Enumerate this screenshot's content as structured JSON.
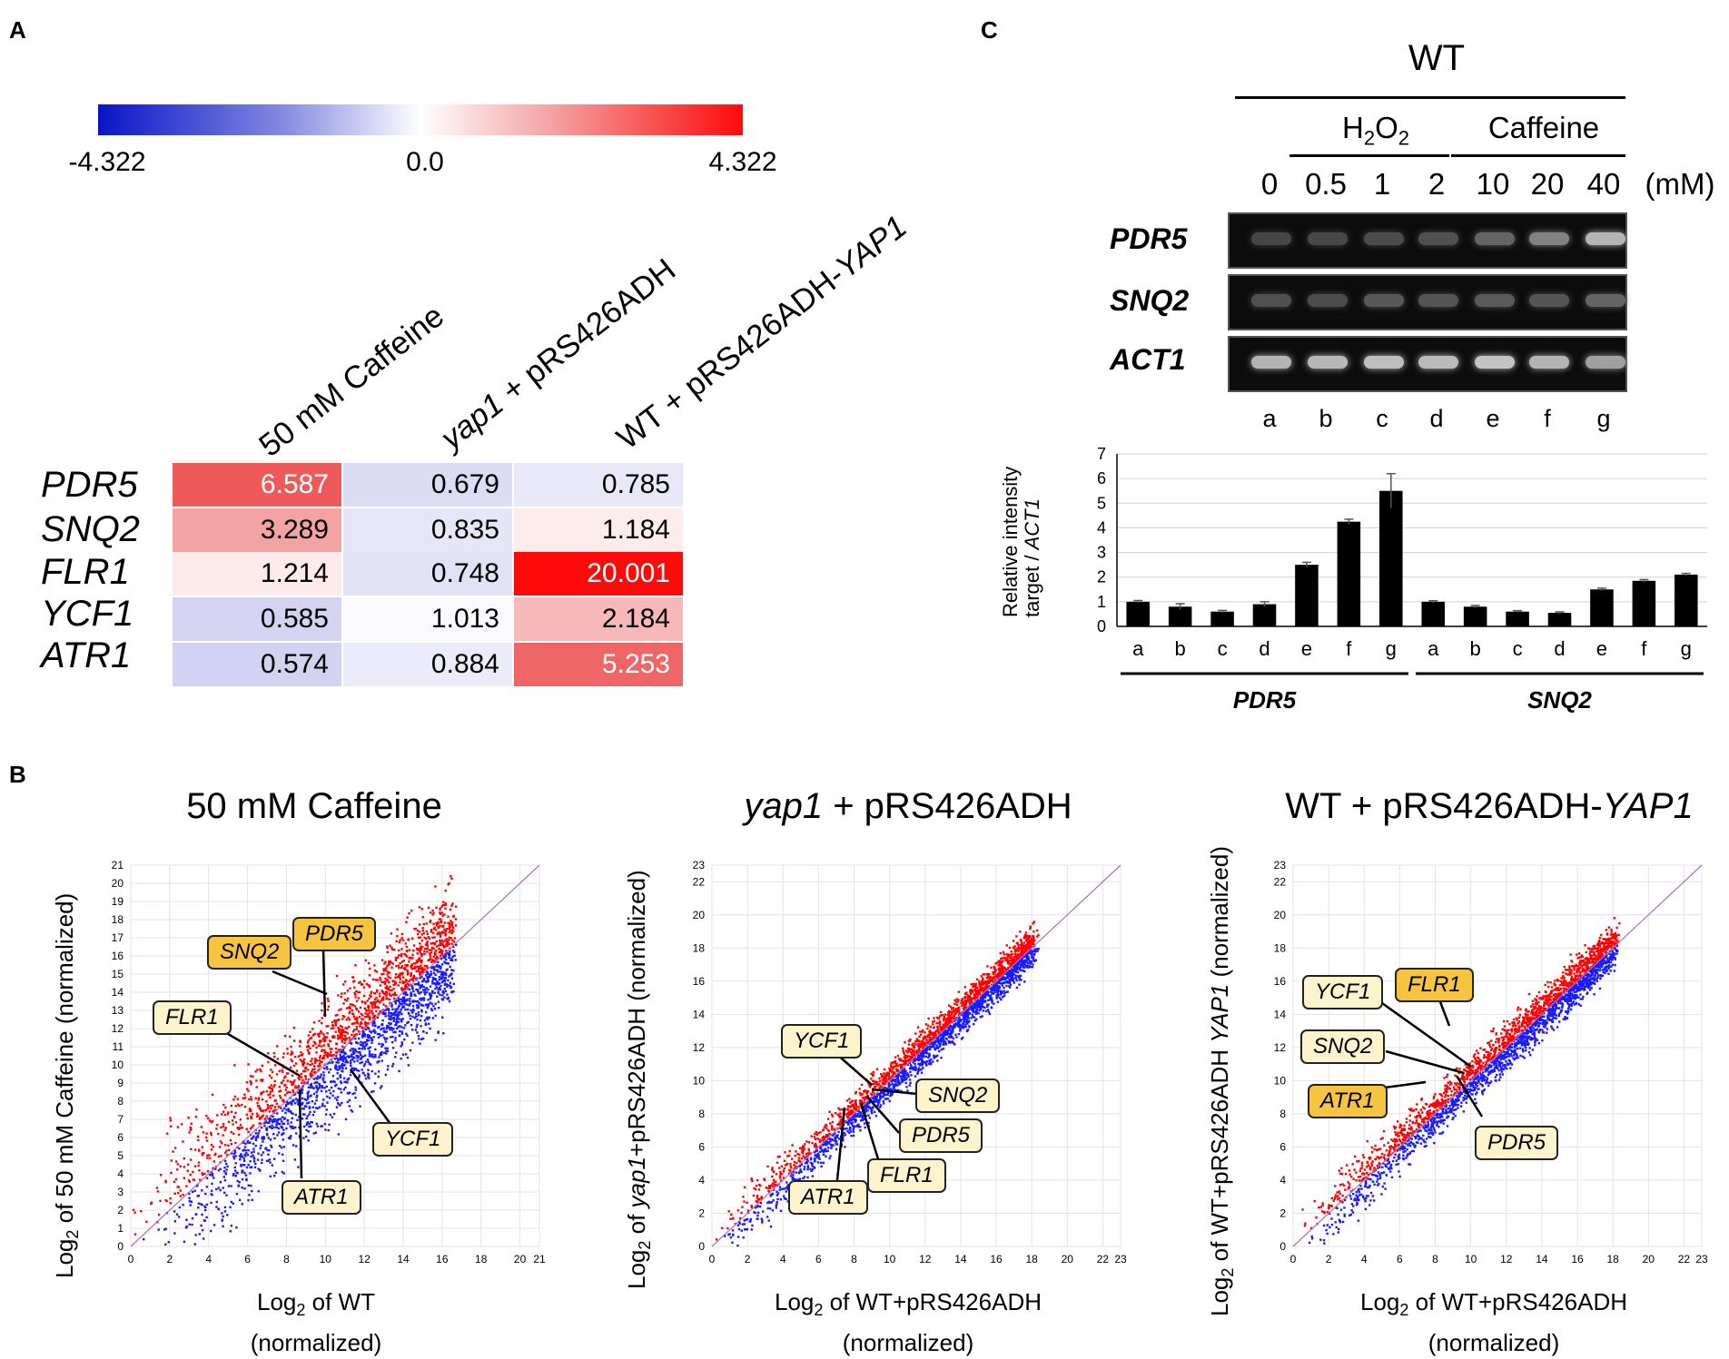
{
  "panels": {
    "a": "A",
    "b": "B",
    "c": "C"
  },
  "heatmap": {
    "scale_min": "-4.322",
    "scale_mid": "0.0",
    "scale_max": "4.322",
    "columns": [
      "50 mM Caffeine",
      "yap1 + pRS426ADH",
      "WT + pRS426ADH-YAP1"
    ],
    "col2_italic": "yap1",
    "col2_rest": " + pRS426ADH",
    "col3_prefix": "WT + pRS426ADH-",
    "col3_italic": "YAP1",
    "genes": [
      "PDR5",
      "SNQ2",
      "FLR1",
      "YCF1",
      "ATR1"
    ],
    "values": [
      [
        "6.587",
        "0.679",
        "0.785"
      ],
      [
        "3.289",
        "0.835",
        "1.184"
      ],
      [
        "1.214",
        "0.748",
        "20.001"
      ],
      [
        "0.585",
        "1.013",
        "2.184"
      ],
      [
        "0.574",
        "0.884",
        "5.253"
      ]
    ],
    "colors": [
      [
        "#ee5a5a",
        "#dcdcf4",
        "#e8e8f8"
      ],
      [
        "#f4a3a3",
        "#e6e6f8",
        "#fdecec"
      ],
      [
        "#fdeaea",
        "#e2e2f6",
        "#ff0a0a"
      ],
      [
        "#d4d4f2",
        "#fafafe",
        "#f6b8b8"
      ],
      [
        "#d2d2f2",
        "#ebebf9",
        "#ef6666"
      ]
    ]
  },
  "gel": {
    "strain": "WT",
    "group_h2o2": "H",
    "h2o2_sub1": "2",
    "h2o2_o": "O",
    "h2o2_sub2": "2",
    "group_caffeine": "Caffeine",
    "concentrations": [
      "0",
      "0.5",
      "1",
      "2",
      "10",
      "20",
      "40"
    ],
    "unit": "(mM)",
    "genes": [
      "PDR5",
      "SNQ2",
      "ACT1"
    ],
    "lanes": [
      "a",
      "b",
      "c",
      "d",
      "e",
      "f",
      "g"
    ],
    "band_intensity": {
      "PDR5": [
        0.15,
        0.16,
        0.18,
        0.2,
        0.3,
        0.45,
        0.7
      ],
      "SNQ2": [
        0.2,
        0.18,
        0.24,
        0.22,
        0.25,
        0.22,
        0.3
      ],
      "ACT1": [
        0.7,
        0.72,
        0.75,
        0.73,
        0.78,
        0.7,
        0.6
      ]
    }
  },
  "chart_data": [
    {
      "type": "bar",
      "title": "",
      "ylabel_line1": "Relative intensity",
      "ylabel_line2_prefix": "target / ",
      "ylabel_line2_italic": "ACT1",
      "ylim": [
        0,
        7
      ],
      "yticks": [
        "0",
        "1",
        "2",
        "3",
        "4",
        "5",
        "6",
        "7"
      ],
      "groups": [
        "PDR5",
        "SNQ2"
      ],
      "categories": [
        "a",
        "b",
        "c",
        "d",
        "e",
        "f",
        "g"
      ],
      "series": [
        {
          "name": "PDR5",
          "values": [
            1.0,
            0.8,
            0.6,
            0.9,
            2.5,
            4.25,
            5.5
          ],
          "errors": [
            0.05,
            0.12,
            0.05,
            0.1,
            0.1,
            0.1,
            0.7
          ]
        },
        {
          "name": "SNQ2",
          "values": [
            1.0,
            0.8,
            0.6,
            0.55,
            1.5,
            1.85,
            2.1
          ],
          "errors": [
            0.04,
            0.05,
            0.04,
            0.04,
            0.05,
            0.05,
            0.05
          ]
        }
      ]
    },
    {
      "type": "scatter",
      "title": "50 mM Caffeine",
      "xlabel_sub": "2",
      "xlabel_prefix": "Log",
      "xlabel_rest": " of WT",
      "xlabel_line2": "(normalized)",
      "ylabel": "Log2 of 50 mM Caffeine (normalized)",
      "ylabel_prefix": "Log",
      "ylabel_sub": "2",
      "ylabel_rest": " of 50 mM Caffeine (normalized)",
      "xlim": [
        0,
        21
      ],
      "ylim": [
        0,
        21
      ],
      "xticks": [
        "0",
        "2",
        "4",
        "6",
        "8",
        "10",
        "12",
        "14",
        "16",
        "18",
        "20",
        "21"
      ],
      "yticks": [
        "0",
        "1",
        "2",
        "3",
        "4",
        "5",
        "6",
        "7",
        "8",
        "9",
        "10",
        "11",
        "12",
        "13",
        "14",
        "15",
        "16",
        "17",
        "18",
        "19",
        "20",
        "21"
      ],
      "spread": 1.6,
      "labels": {
        "SNQ2": "SNQ2",
        "PDR5": "PDR5",
        "FLR1": "FLR1",
        "YCF1": "YCF1",
        "ATR1": "ATR1"
      }
    },
    {
      "type": "scatter",
      "title_italic": "yap1",
      "title_rest": " + pRS426ADH",
      "xlabel_prefix": "Log",
      "xlabel_sub": "2",
      "xlabel_rest": " of WT+pRS426ADH",
      "xlabel_line2": "(normalized)",
      "ylabel_prefix": "Log",
      "ylabel_sub": "2",
      "ylabel_mid": " of ",
      "ylabel_italic": "yap1",
      "ylabel_rest": "+pRS426ADH (normalized)",
      "xlim": [
        0,
        23
      ],
      "ylim": [
        0,
        23
      ],
      "xticks": [
        "0",
        "2",
        "4",
        "6",
        "8",
        "10",
        "12",
        "14",
        "16",
        "18",
        "20",
        "22",
        "23"
      ],
      "yticks": [
        "0",
        "2",
        "4",
        "6",
        "8",
        "10",
        "12",
        "14",
        "16",
        "18",
        "20",
        "22",
        "23"
      ],
      "spread": 0.6,
      "labels": {
        "YCF1": "YCF1",
        "SNQ2": "SNQ2",
        "PDR5": "PDR5",
        "FLR1": "FLR1",
        "ATR1": "ATR1"
      }
    },
    {
      "type": "scatter",
      "title_prefix": "WT + pRS426ADH-",
      "title_italic": "YAP1",
      "xlabel_prefix": "Log",
      "xlabel_sub": "2",
      "xlabel_rest": " of WT+pRS426ADH",
      "xlabel_line2": "(normalized)",
      "ylabel_prefix": "Log",
      "ylabel_sub": "2",
      "ylabel_mid": " of WT+pRS426ADH ",
      "ylabel_italic": "YAP1",
      "ylabel_rest": " (normalized)",
      "xlim": [
        0,
        23
      ],
      "ylim": [
        0,
        23
      ],
      "xticks": [
        "0",
        "2",
        "4",
        "6",
        "8",
        "10",
        "12",
        "14",
        "16",
        "18",
        "20",
        "22",
        "23"
      ],
      "yticks": [
        "0",
        "2",
        "4",
        "6",
        "8",
        "10",
        "12",
        "14",
        "16",
        "18",
        "20",
        "22",
        "23"
      ],
      "spread": 0.7,
      "labels": {
        "YCF1": "YCF1",
        "FLR1": "FLR1",
        "SNQ2": "SNQ2",
        "ATR1": "ATR1",
        "PDR5": "PDR5"
      }
    }
  ],
  "colors": {
    "up": "#ff0000",
    "down": "#1a1aff",
    "diag": "#b070c8",
    "tag_bg": "#fdf3cc",
    "tag_hl": "#f5c542"
  }
}
